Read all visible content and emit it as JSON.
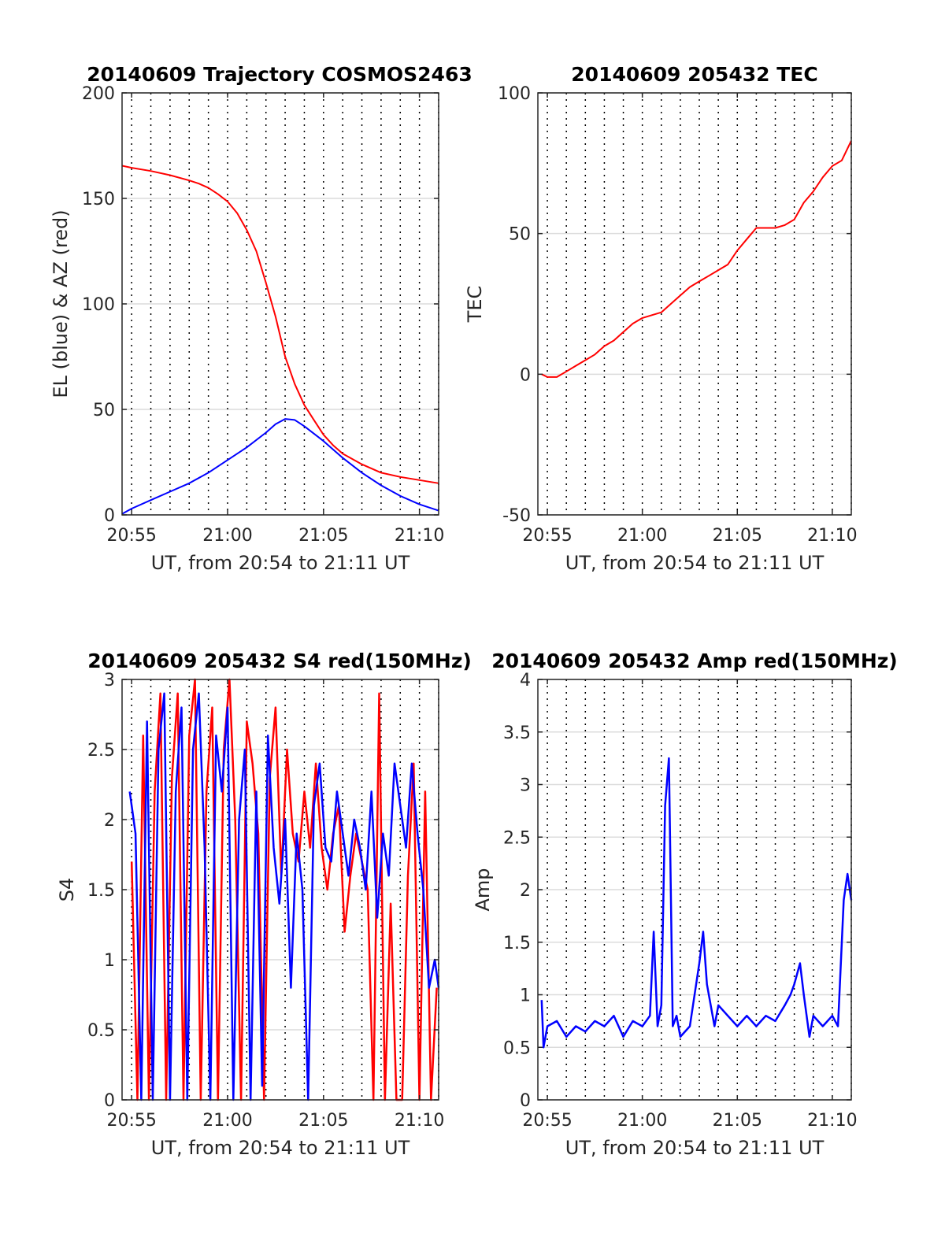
{
  "chart_data": [
    {
      "id": "traj",
      "type": "line",
      "title": "20140609 Trajectory COSMOS2463",
      "xlabel": "UT, from 20:54 to 21:11 UT",
      "ylabel": "EL (blue) & AZ (red)",
      "xlim": [
        54.5,
        71.0
      ],
      "ylim": [
        0,
        200
      ],
      "xticks": [
        55,
        60,
        65,
        70
      ],
      "xtick_labels": [
        "20:55",
        "21:00",
        "21:05",
        "21:10"
      ],
      "yticks": [
        0,
        50,
        100,
        150,
        200
      ],
      "ytick_labels": [
        "0",
        "50",
        "100",
        "150",
        "200"
      ],
      "series": [
        {
          "color": "#ff0000",
          "x": [
            54.5,
            55,
            56,
            57,
            58,
            58.5,
            59,
            59.5,
            60,
            60.5,
            61,
            61.5,
            62,
            62.5,
            63,
            63.5,
            64,
            64.5,
            65,
            65.5,
            66,
            67,
            68,
            69,
            70,
            71
          ],
          "y": [
            165.5,
            164.5,
            163,
            161,
            158.5,
            157,
            155,
            152,
            148.5,
            143,
            135,
            125,
            110,
            94,
            75,
            62,
            52,
            45,
            38,
            33,
            29,
            24,
            20,
            18,
            16.5,
            15
          ]
        },
        {
          "color": "#0000ff",
          "x": [
            54.5,
            55,
            56,
            57,
            58,
            59,
            60,
            61,
            62,
            62.5,
            63,
            63.5,
            64,
            65,
            66,
            67,
            68,
            69,
            70,
            71
          ],
          "y": [
            0.5,
            3,
            7,
            11,
            15,
            20,
            26,
            32,
            39,
            43,
            45.5,
            45,
            42,
            35,
            27,
            20,
            14,
            9,
            5,
            2
          ]
        }
      ]
    },
    {
      "id": "tec",
      "type": "line",
      "title": "20140609 205432 TEC",
      "xlabel": "UT, from 20:54 to 21:11 UT",
      "ylabel": "TEC",
      "xlim": [
        54.5,
        71.0
      ],
      "ylim": [
        -50,
        100
      ],
      "xticks": [
        55,
        60,
        65,
        70
      ],
      "xtick_labels": [
        "20:55",
        "21:00",
        "21:05",
        "21:10"
      ],
      "yticks": [
        -50,
        0,
        50,
        100
      ],
      "ytick_labels": [
        "-50",
        "0",
        "50",
        "100"
      ],
      "series": [
        {
          "color": "#ff0000",
          "x": [
            54.7,
            55.0,
            55.5,
            56.0,
            56.5,
            57.0,
            57.5,
            58.0,
            58.5,
            59.0,
            59.5,
            60.0,
            60.5,
            61.0,
            61.5,
            62.0,
            62.5,
            63.0,
            63.5,
            64.0,
            64.5,
            65.0,
            65.5,
            66.0,
            66.5,
            67.0,
            67.5,
            68.0,
            68.5,
            69.0,
            69.5,
            70.0,
            70.5,
            71.0
          ],
          "y": [
            0,
            -1,
            -1,
            1,
            3,
            5,
            7,
            10,
            12,
            15,
            18,
            20,
            21,
            22,
            25,
            28,
            31,
            33,
            35,
            37,
            39,
            44,
            48,
            52,
            52,
            52,
            53,
            55,
            61,
            65,
            70,
            74,
            76,
            83
          ]
        }
      ]
    },
    {
      "id": "s4",
      "type": "line",
      "title": "20140609 205432 S4 red(150MHz)",
      "xlabel": "UT, from 20:54 to 21:11 UT",
      "ylabel": "S4",
      "xlim": [
        54.5,
        71.0
      ],
      "ylim": [
        0,
        3
      ],
      "xticks": [
        55,
        60,
        65,
        70
      ],
      "xtick_labels": [
        "20:55",
        "21:00",
        "21:05",
        "21:10"
      ],
      "yticks": [
        0,
        0.5,
        1,
        1.5,
        2,
        2.5,
        3
      ],
      "ytick_labels": [
        "0",
        "0.5",
        "1",
        "1.5",
        "2",
        "2.5",
        "3"
      ],
      "series": [
        {
          "color": "#ff0000",
          "x": [
            55.0,
            55.3,
            55.6,
            55.9,
            56.2,
            56.5,
            56.8,
            57.1,
            57.4,
            57.7,
            58.0,
            58.3,
            58.6,
            58.9,
            59.2,
            59.5,
            59.8,
            60.1,
            60.4,
            60.7,
            61.0,
            61.3,
            61.6,
            61.9,
            62.2,
            62.5,
            62.8,
            63.1,
            63.4,
            63.7,
            64.0,
            64.3,
            64.6,
            64.9,
            65.2,
            65.5,
            65.8,
            66.1,
            66.4,
            66.7,
            67.0,
            67.3,
            67.6,
            67.9,
            68.2,
            68.5,
            68.8,
            69.1,
            69.4,
            69.7,
            70.0,
            70.3,
            70.6,
            70.9
          ],
          "y": [
            1.7,
            0,
            2.6,
            0,
            2.2,
            2.9,
            0,
            2.3,
            2.9,
            0,
            2.6,
            3.0,
            0,
            2.2,
            2.8,
            0,
            2.5,
            3.0,
            2.0,
            0,
            2.7,
            2.4,
            1.9,
            0,
            2.3,
            2.8,
            1.6,
            2.5,
            1.9,
            1.7,
            2.2,
            1.8,
            2.4,
            1.8,
            1.5,
            1.9,
            2.1,
            1.2,
            1.6,
            1.9,
            1.7,
            1.5,
            0,
            2.9,
            0,
            1.4,
            0,
            0,
            1.6,
            2.4,
            0,
            2.2,
            0,
            0.8
          ]
        },
        {
          "color": "#0000ff",
          "x": [
            54.9,
            55.2,
            55.5,
            55.8,
            56.1,
            56.4,
            56.7,
            57.0,
            57.3,
            57.6,
            57.9,
            58.2,
            58.5,
            58.8,
            59.1,
            59.4,
            59.7,
            60.0,
            60.3,
            60.6,
            60.9,
            61.2,
            61.5,
            61.8,
            62.1,
            62.4,
            62.7,
            63.0,
            63.3,
            63.6,
            63.9,
            64.2,
            64.5,
            64.8,
            65.1,
            65.4,
            65.7,
            66.0,
            66.3,
            66.6,
            66.9,
            67.2,
            67.5,
            67.8,
            68.1,
            68.4,
            68.7,
            69.0,
            69.3,
            69.6,
            69.9,
            70.2,
            70.5,
            70.8,
            71.0
          ],
          "y": [
            2.2,
            1.9,
            0,
            2.7,
            0,
            2.5,
            2.9,
            0,
            2.2,
            2.8,
            0,
            2.5,
            2.9,
            1.8,
            0,
            2.6,
            2.2,
            2.8,
            0,
            2.0,
            2.5,
            0,
            2.2,
            0.1,
            2.6,
            1.8,
            1.4,
            2.0,
            0.8,
            1.9,
            1.5,
            0,
            2.1,
            2.4,
            1.8,
            1.7,
            2.2,
            1.9,
            1.6,
            2.0,
            1.8,
            1.5,
            2.2,
            1.3,
            1.9,
            1.6,
            2.4,
            2.1,
            1.8,
            2.4,
            1.9,
            1.5,
            0.8,
            1.0,
            0.8
          ]
        }
      ]
    },
    {
      "id": "amp",
      "type": "line",
      "title": "20140609 205432 Amp red(150MHz)",
      "xlabel": "UT, from 20:54 to 21:11 UT",
      "ylabel": "Amp",
      "xlim": [
        54.5,
        71.0
      ],
      "ylim": [
        0,
        4
      ],
      "xticks": [
        55,
        60,
        65,
        70
      ],
      "xtick_labels": [
        "20:55",
        "21:00",
        "21:05",
        "21:10"
      ],
      "yticks": [
        0,
        0.5,
        1,
        1.5,
        2,
        2.5,
        3,
        3.5,
        4
      ],
      "ytick_labels": [
        "0",
        "0.5",
        "1",
        "1.5",
        "2",
        "2.5",
        "3",
        "3.5",
        "4"
      ],
      "series": [
        {
          "color": "#0000ff",
          "x": [
            54.7,
            54.8,
            55.0,
            55.5,
            56.0,
            56.5,
            57.0,
            57.5,
            58.0,
            58.5,
            59.0,
            59.5,
            60.0,
            60.4,
            60.6,
            60.8,
            61.0,
            61.2,
            61.4,
            61.6,
            61.8,
            62.0,
            62.5,
            63.0,
            63.2,
            63.4,
            63.6,
            63.8,
            64.0,
            64.5,
            65.0,
            65.5,
            66.0,
            66.5,
            67.0,
            67.5,
            67.8,
            68.0,
            68.3,
            68.5,
            68.8,
            69.0,
            69.5,
            70.0,
            70.3,
            70.6,
            70.8,
            71.0
          ],
          "y": [
            0.95,
            0.5,
            0.7,
            0.75,
            0.6,
            0.7,
            0.65,
            0.75,
            0.7,
            0.8,
            0.6,
            0.75,
            0.7,
            0.8,
            1.6,
            0.7,
            0.9,
            2.8,
            3.25,
            0.7,
            0.8,
            0.6,
            0.7,
            1.3,
            1.6,
            1.1,
            0.9,
            0.7,
            0.9,
            0.8,
            0.7,
            0.8,
            0.7,
            0.8,
            0.75,
            0.9,
            1.0,
            1.1,
            1.3,
            1.0,
            0.6,
            0.8,
            0.7,
            0.8,
            0.7,
            1.9,
            2.15,
            1.9
          ]
        }
      ]
    }
  ]
}
